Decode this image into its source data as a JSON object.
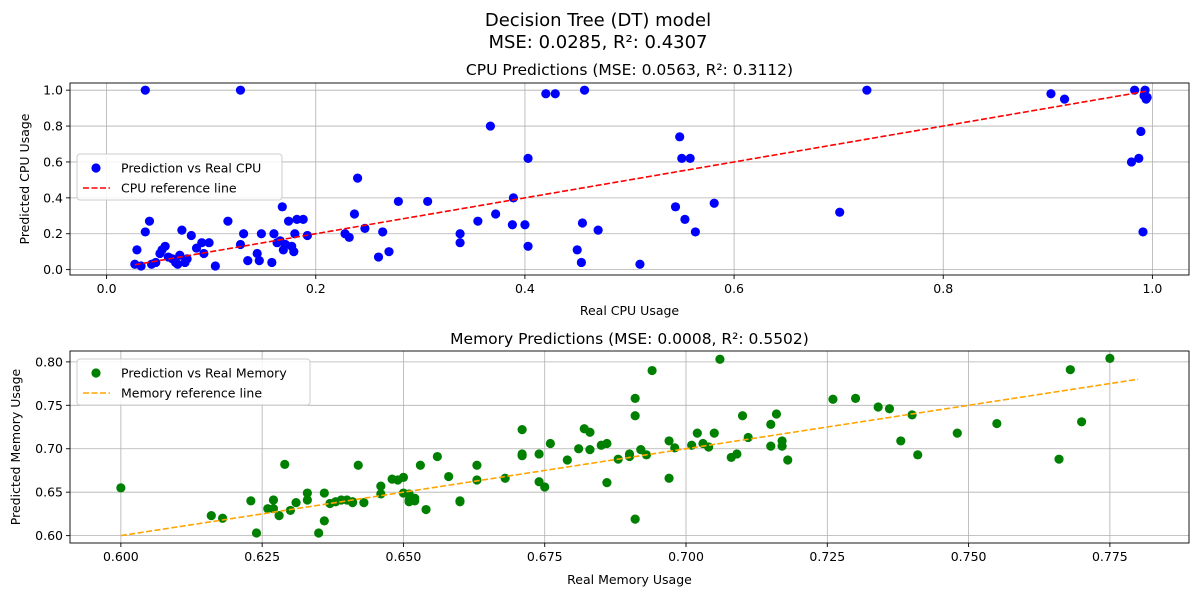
{
  "figure": {
    "title_line1": "Decision Tree (DT) model",
    "title_line2": "MSE: 0.0285, R²: 0.4307"
  },
  "chart_data": [
    {
      "type": "scatter",
      "title": "CPU Predictions (MSE: 0.0563, R²: 0.3112)",
      "xlabel": "Real CPU Usage",
      "ylabel": "Predicted CPU Usage",
      "xlim": [
        -0.035,
        1.035
      ],
      "ylim": [
        -0.03,
        1.04
      ],
      "xticks": [
        0.0,
        0.2,
        0.4,
        0.6,
        0.8,
        1.0
      ],
      "xtick_labels": [
        "0.0",
        "0.2",
        "0.4",
        "0.6",
        "0.8",
        "1.0"
      ],
      "yticks": [
        0.0,
        0.2,
        0.4,
        0.6,
        0.8,
        1.0
      ],
      "ytick_labels": [
        "0.0",
        "0.2",
        "0.4",
        "0.6",
        "0.8",
        "1.0"
      ],
      "grid": true,
      "legend_position": "center-left",
      "series": [
        {
          "name": "Prediction vs Real CPU",
          "kind": "scatter",
          "color": "#0000ff",
          "points": [
            [
              0.027,
              0.03
            ],
            [
              0.029,
              0.11
            ],
            [
              0.033,
              0.02
            ],
            [
              0.037,
              1.0
            ],
            [
              0.037,
              0.21
            ],
            [
              0.041,
              0.27
            ],
            [
              0.043,
              0.03
            ],
            [
              0.047,
              0.04
            ],
            [
              0.051,
              0.09
            ],
            [
              0.053,
              0.11
            ],
            [
              0.056,
              0.13
            ],
            [
              0.059,
              0.07
            ],
            [
              0.063,
              0.06
            ],
            [
              0.066,
              0.04
            ],
            [
              0.068,
              0.03
            ],
            [
              0.07,
              0.08
            ],
            [
              0.072,
              0.22
            ],
            [
              0.075,
              0.04
            ],
            [
              0.077,
              0.06
            ],
            [
              0.081,
              0.19
            ],
            [
              0.086,
              0.12
            ],
            [
              0.091,
              0.15
            ],
            [
              0.093,
              0.09
            ],
            [
              0.098,
              0.15
            ],
            [
              0.104,
              0.02
            ],
            [
              0.116,
              0.27
            ],
            [
              0.128,
              1.0
            ],
            [
              0.128,
              0.14
            ],
            [
              0.131,
              0.2
            ],
            [
              0.135,
              0.05
            ],
            [
              0.144,
              0.09
            ],
            [
              0.146,
              0.05
            ],
            [
              0.148,
              0.2
            ],
            [
              0.158,
              0.04
            ],
            [
              0.16,
              0.2
            ],
            [
              0.163,
              0.15
            ],
            [
              0.166,
              0.16
            ],
            [
              0.168,
              0.35
            ],
            [
              0.169,
              0.11
            ],
            [
              0.171,
              0.14
            ],
            [
              0.174,
              0.27
            ],
            [
              0.177,
              0.13
            ],
            [
              0.179,
              0.1
            ],
            [
              0.18,
              0.2
            ],
            [
              0.182,
              0.28
            ],
            [
              0.188,
              0.28
            ],
            [
              0.192,
              0.19
            ],
            [
              0.228,
              0.2
            ],
            [
              0.232,
              0.18
            ],
            [
              0.237,
              0.31
            ],
            [
              0.24,
              0.51
            ],
            [
              0.247,
              0.23
            ],
            [
              0.26,
              0.07
            ],
            [
              0.264,
              0.21
            ],
            [
              0.27,
              0.1
            ],
            [
              0.279,
              0.38
            ],
            [
              0.307,
              0.38
            ],
            [
              0.338,
              0.2
            ],
            [
              0.338,
              0.15
            ],
            [
              0.355,
              0.27
            ],
            [
              0.367,
              0.8
            ],
            [
              0.372,
              0.31
            ],
            [
              0.388,
              0.25
            ],
            [
              0.389,
              0.4
            ],
            [
              0.4,
              0.25
            ],
            [
              0.403,
              0.13
            ],
            [
              0.403,
              0.62
            ],
            [
              0.42,
              0.98
            ],
            [
              0.429,
              0.98
            ],
            [
              0.45,
              0.11
            ],
            [
              0.454,
              0.04
            ],
            [
              0.455,
              0.26
            ],
            [
              0.457,
              1.0
            ],
            [
              0.47,
              0.22
            ],
            [
              0.51,
              0.03
            ],
            [
              0.544,
              0.35
            ],
            [
              0.548,
              0.74
            ],
            [
              0.55,
              0.62
            ],
            [
              0.553,
              0.28
            ],
            [
              0.558,
              0.62
            ],
            [
              0.563,
              0.21
            ],
            [
              0.581,
              0.37
            ],
            [
              0.701,
              0.32
            ],
            [
              0.727,
              1.0
            ],
            [
              0.903,
              0.98
            ],
            [
              0.916,
              0.95
            ],
            [
              0.98,
              0.6
            ],
            [
              0.983,
              1.0
            ],
            [
              0.987,
              0.62
            ],
            [
              0.989,
              0.77
            ],
            [
              0.991,
              0.21
            ],
            [
              0.992,
              0.97
            ],
            [
              0.993,
              1.0
            ],
            [
              0.994,
              0.95
            ],
            [
              0.995,
              0.96
            ]
          ]
        },
        {
          "name": "CPU reference line",
          "kind": "line",
          "color": "#ff0000",
          "dash": "dashed",
          "points": [
            [
              0.027,
              0.027
            ],
            [
              0.995,
              0.995
            ]
          ]
        }
      ]
    },
    {
      "type": "scatter",
      "title": "Memory Predictions (MSE: 0.0008, R²: 0.5502)",
      "xlabel": "Real Memory Usage",
      "ylabel": "Predicted Memory Usage",
      "xlim": [
        0.591,
        0.789
      ],
      "ylim": [
        0.5915,
        0.8125
      ],
      "xticks": [
        0.6,
        0.625,
        0.65,
        0.675,
        0.7,
        0.725,
        0.75,
        0.775
      ],
      "xtick_labels": [
        "0.600",
        "0.625",
        "0.650",
        "0.675",
        "0.700",
        "0.725",
        "0.750",
        "0.775"
      ],
      "yticks": [
        0.6,
        0.65,
        0.7,
        0.75,
        0.8
      ],
      "ytick_labels": [
        "0.60",
        "0.65",
        "0.70",
        "0.75",
        "0.80"
      ],
      "grid": true,
      "legend_position": "top-left",
      "series": [
        {
          "name": "Prediction vs Real Memory",
          "kind": "scatter",
          "color": "#008000",
          "points": [
            [
              0.6,
              0.655
            ],
            [
              0.616,
              0.623
            ],
            [
              0.618,
              0.62
            ],
            [
              0.623,
              0.64
            ],
            [
              0.624,
              0.603
            ],
            [
              0.626,
              0.631
            ],
            [
              0.627,
              0.641
            ],
            [
              0.627,
              0.631
            ],
            [
              0.628,
              0.623
            ],
            [
              0.629,
              0.682
            ],
            [
              0.63,
              0.629
            ],
            [
              0.631,
              0.638
            ],
            [
              0.633,
              0.649
            ],
            [
              0.633,
              0.641
            ],
            [
              0.635,
              0.603
            ],
            [
              0.636,
              0.617
            ],
            [
              0.636,
              0.649
            ],
            [
              0.637,
              0.637
            ],
            [
              0.638,
              0.639
            ],
            [
              0.639,
              0.641
            ],
            [
              0.64,
              0.641
            ],
            [
              0.641,
              0.639
            ],
            [
              0.641,
              0.638
            ],
            [
              0.642,
              0.681
            ],
            [
              0.643,
              0.638
            ],
            [
              0.646,
              0.657
            ],
            [
              0.646,
              0.648
            ],
            [
              0.648,
              0.665
            ],
            [
              0.649,
              0.664
            ],
            [
              0.65,
              0.667
            ],
            [
              0.65,
              0.649
            ],
            [
              0.651,
              0.648
            ],
            [
              0.651,
              0.639
            ],
            [
              0.651,
              0.641
            ],
            [
              0.652,
              0.643
            ],
            [
              0.652,
              0.64
            ],
            [
              0.653,
              0.681
            ],
            [
              0.654,
              0.63
            ],
            [
              0.656,
              0.691
            ],
            [
              0.658,
              0.668
            ],
            [
              0.66,
              0.64
            ],
            [
              0.66,
              0.639
            ],
            [
              0.663,
              0.664
            ],
            [
              0.663,
              0.681
            ],
            [
              0.668,
              0.666
            ],
            [
              0.671,
              0.692
            ],
            [
              0.671,
              0.722
            ],
            [
              0.671,
              0.694
            ],
            [
              0.674,
              0.694
            ],
            [
              0.674,
              0.662
            ],
            [
              0.675,
              0.656
            ],
            [
              0.676,
              0.706
            ],
            [
              0.679,
              0.687
            ],
            [
              0.681,
              0.7
            ],
            [
              0.682,
              0.723
            ],
            [
              0.683,
              0.719
            ],
            [
              0.683,
              0.699
            ],
            [
              0.685,
              0.704
            ],
            [
              0.686,
              0.661
            ],
            [
              0.686,
              0.706
            ],
            [
              0.688,
              0.688
            ],
            [
              0.69,
              0.691
            ],
            [
              0.69,
              0.694
            ],
            [
              0.691,
              0.619
            ],
            [
              0.691,
              0.738
            ],
            [
              0.691,
              0.758
            ],
            [
              0.692,
              0.699
            ],
            [
              0.693,
              0.693
            ],
            [
              0.694,
              0.79
            ],
            [
              0.697,
              0.709
            ],
            [
              0.697,
              0.666
            ],
            [
              0.698,
              0.701
            ],
            [
              0.701,
              0.704
            ],
            [
              0.702,
              0.718
            ],
            [
              0.703,
              0.706
            ],
            [
              0.704,
              0.702
            ],
            [
              0.705,
              0.718
            ],
            [
              0.706,
              0.803
            ],
            [
              0.708,
              0.69
            ],
            [
              0.709,
              0.694
            ],
            [
              0.71,
              0.738
            ],
            [
              0.711,
              0.713
            ],
            [
              0.715,
              0.703
            ],
            [
              0.715,
              0.728
            ],
            [
              0.716,
              0.74
            ],
            [
              0.717,
              0.703
            ],
            [
              0.717,
              0.709
            ],
            [
              0.718,
              0.687
            ],
            [
              0.726,
              0.757
            ],
            [
              0.73,
              0.758
            ],
            [
              0.734,
              0.748
            ],
            [
              0.736,
              0.746
            ],
            [
              0.738,
              0.709
            ],
            [
              0.74,
              0.739
            ],
            [
              0.741,
              0.693
            ],
            [
              0.748,
              0.718
            ],
            [
              0.755,
              0.729
            ],
            [
              0.766,
              0.688
            ],
            [
              0.768,
              0.791
            ],
            [
              0.77,
              0.731
            ],
            [
              0.775,
              0.804
            ]
          ]
        },
        {
          "name": "Memory reference line",
          "kind": "line",
          "color": "#ffa500",
          "dash": "dashed",
          "points": [
            [
              0.6,
              0.6
            ],
            [
              0.78,
              0.78
            ]
          ]
        }
      ]
    }
  ]
}
